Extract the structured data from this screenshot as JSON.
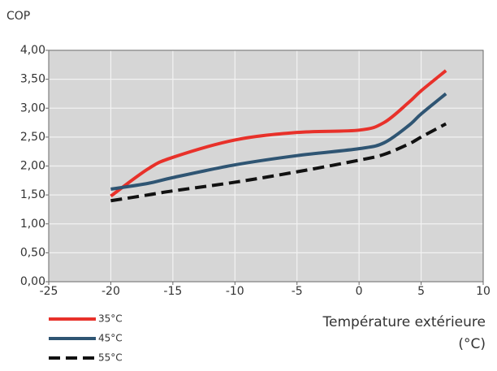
{
  "chart_data": {
    "type": "line",
    "ylabel": "COP",
    "xlabel": [
      "Température extérieure",
      "(°C)"
    ],
    "x": [
      -20,
      -17,
      -15,
      -10,
      -5,
      0,
      2,
      4,
      5,
      7
    ],
    "series": [
      {
        "name": "35°C",
        "color": "#e8312a",
        "dash": false,
        "values": [
          1.48,
          1.95,
          2.15,
          2.45,
          2.58,
          2.62,
          2.75,
          3.1,
          3.3,
          3.65
        ]
      },
      {
        "name": "45°C",
        "color": "#2f5573",
        "dash": false,
        "values": [
          1.6,
          1.7,
          1.8,
          2.02,
          2.18,
          2.3,
          2.4,
          2.7,
          2.9,
          3.25
        ]
      },
      {
        "name": "55°C",
        "color": "#111111",
        "dash": true,
        "values": [
          1.4,
          1.5,
          1.57,
          1.72,
          1.9,
          2.1,
          2.2,
          2.38,
          2.5,
          2.73
        ]
      }
    ],
    "xlim": [
      -25,
      10
    ],
    "xticks": [
      -25,
      -20,
      -15,
      -10,
      -5,
      0,
      5,
      10
    ],
    "ylim": [
      0,
      4
    ],
    "yticks": [
      {
        "value": 0,
        "label": "0,00"
      },
      {
        "value": 0.5,
        "label": "0,50"
      },
      {
        "value": 1,
        "label": "1,00"
      },
      {
        "value": 1.5,
        "label": "1,50"
      },
      {
        "value": 2,
        "label": "2,00"
      },
      {
        "value": 2.5,
        "label": "2,50"
      },
      {
        "value": 3,
        "label": "3,00"
      },
      {
        "value": 3.5,
        "label": "3,50"
      },
      {
        "value": 4,
        "label": "4,00"
      }
    ],
    "grid": true
  }
}
